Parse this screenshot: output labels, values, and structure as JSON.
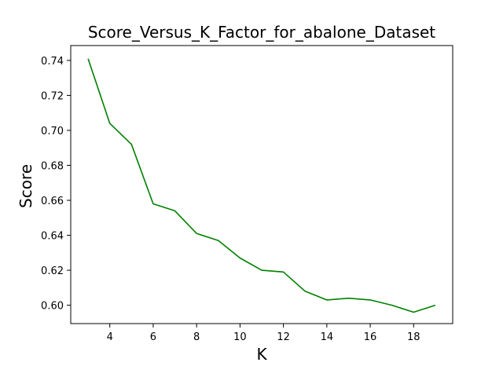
{
  "chart_data": {
    "type": "line",
    "title": "Score_Versus_K_Factor_for_abalone_Dataset",
    "xlabel": "K",
    "ylabel": "Score",
    "xlim": [
      2.2,
      19.8
    ],
    "ylim": [
      0.5895,
      0.7485
    ],
    "x_ticks": [
      4,
      6,
      8,
      10,
      12,
      14,
      16,
      18
    ],
    "y_ticks": [
      0.6,
      0.62,
      0.64,
      0.66,
      0.68,
      0.7,
      0.72,
      0.74
    ],
    "y_tick_labels": [
      "0.60",
      "0.62",
      "0.64",
      "0.66",
      "0.68",
      "0.70",
      "0.72",
      "0.74"
    ],
    "grid": false,
    "series": [
      {
        "color": "#008000",
        "x": [
          3,
          4,
          5,
          6,
          7,
          8,
          9,
          10,
          11,
          12,
          13,
          14,
          15,
          16,
          17,
          18,
          19
        ],
        "y": [
          0.741,
          0.704,
          0.692,
          0.658,
          0.654,
          0.641,
          0.637,
          0.627,
          0.62,
          0.619,
          0.608,
          0.603,
          0.604,
          0.603,
          0.6,
          0.596,
          0.6
        ]
      }
    ]
  }
}
